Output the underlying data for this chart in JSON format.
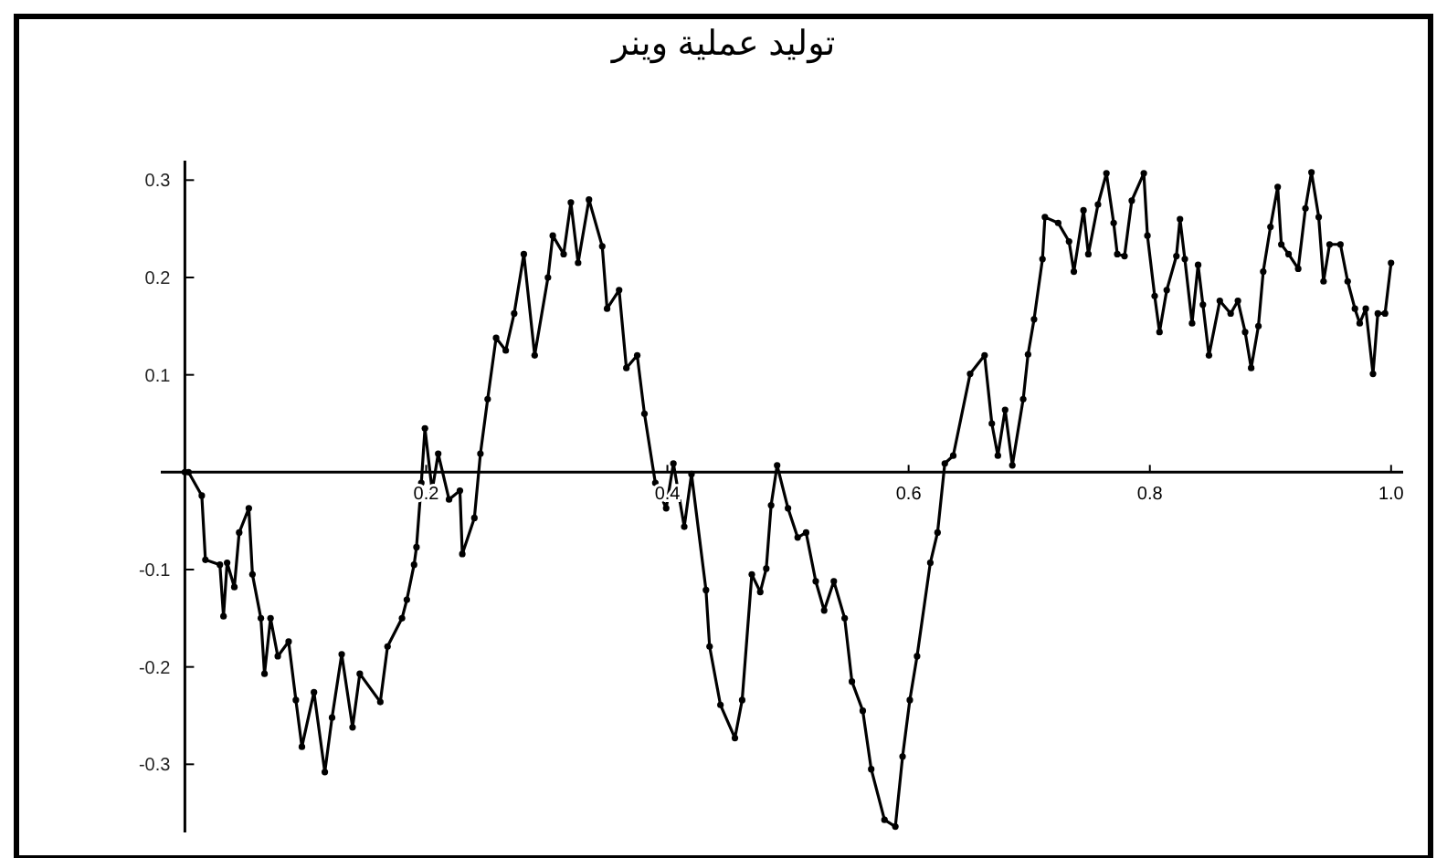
{
  "chart_data": {
    "type": "line",
    "title": "توليد عملية وينر",
    "marker": "circle",
    "line_style": "solid",
    "grid": false,
    "xlim": [
      -0.02,
      1.01
    ],
    "ylim": [
      -0.37,
      0.32
    ],
    "xticks": [
      0.2,
      0.4,
      0.6,
      0.8,
      {
        "value": 1,
        "label": "1.0"
      }
    ],
    "yticks": [
      -0.3,
      -0.2,
      -0.1,
      0.1,
      0.2,
      0.3
    ],
    "series": [
      {
        "color": "#000000",
        "x": [
          0,
          0.003,
          0.014,
          0.017,
          0.029,
          0.032,
          0.035,
          0.041,
          0.045,
          0.053,
          0.056,
          0.063,
          0.066,
          0.071,
          0.077,
          0.086,
          0.092,
          0.097,
          0.107,
          0.116,
          0.122,
          0.13,
          0.139,
          0.145,
          0.162,
          0.168,
          0.18,
          0.184,
          0.19,
          0.192,
          0.196,
          0.199,
          0.205,
          0.21,
          0.219,
          0.228,
          0.23,
          0.24,
          0.245,
          0.251,
          0.258,
          0.266,
          0.273,
          0.281,
          0.29,
          0.301,
          0.305,
          0.314,
          0.32,
          0.326,
          0.335,
          0.346,
          0.35,
          0.36,
          0.366,
          0.375,
          0.381,
          0.39,
          0.399,
          0.405,
          0.414,
          0.42,
          0.432,
          0.435,
          0.444,
          0.456,
          0.462,
          0.47,
          0.477,
          0.482,
          0.486,
          0.491,
          0.5,
          0.508,
          0.515,
          0.523,
          0.53,
          0.538,
          0.547,
          0.553,
          0.562,
          0.569,
          0.58,
          0.589,
          0.595,
          0.601,
          0.607,
          0.618,
          0.624,
          0.63,
          0.637,
          0.651,
          0.663,
          0.669,
          0.674,
          0.68,
          0.686,
          0.695,
          0.699,
          0.704,
          0.711,
          0.713,
          0.724,
          0.733,
          0.737,
          0.745,
          0.749,
          0.757,
          0.764,
          0.77,
          0.773,
          0.779,
          0.785,
          0.795,
          0.798,
          0.804,
          0.808,
          0.814,
          0.822,
          0.825,
          0.829,
          0.835,
          0.84,
          0.844,
          0.849,
          0.858,
          0.867,
          0.873,
          0.879,
          0.884,
          0.89,
          0.894,
          0.9,
          0.906,
          0.909,
          0.915,
          0.923,
          0.929,
          0.934,
          0.94,
          0.944,
          0.949,
          0.958,
          0.964,
          0.97,
          0.974,
          0.979,
          0.985,
          0.989,
          0.995,
          1.0
        ],
        "values": [
          0,
          0,
          -0.024,
          -0.09,
          -0.095,
          -0.148,
          -0.093,
          -0.118,
          -0.062,
          -0.037,
          -0.105,
          -0.15,
          -0.207,
          -0.15,
          -0.189,
          -0.174,
          -0.234,
          -0.282,
          -0.226,
          -0.308,
          -0.252,
          -0.187,
          -0.262,
          -0.207,
          -0.236,
          -0.179,
          -0.15,
          -0.131,
          -0.095,
          -0.077,
          -0.011,
          0.045,
          -0.019,
          0.019,
          -0.028,
          -0.019,
          -0.084,
          -0.047,
          0.019,
          0.075,
          0.138,
          0.125,
          0.163,
          0.224,
          0.12,
          0.2,
          0.243,
          0.224,
          0.277,
          0.215,
          0.28,
          0.232,
          0.168,
          0.187,
          0.107,
          0.12,
          0.06,
          -0.011,
          -0.037,
          0.009,
          -0.056,
          -0.002,
          -0.121,
          -0.179,
          -0.239,
          -0.273,
          -0.234,
          -0.105,
          -0.123,
          -0.099,
          -0.034,
          0.007,
          -0.037,
          -0.067,
          -0.062,
          -0.112,
          -0.142,
          -0.112,
          -0.15,
          -0.215,
          -0.245,
          -0.305,
          -0.357,
          -0.364,
          -0.292,
          -0.234,
          -0.189,
          -0.093,
          -0.062,
          0.009,
          0.017,
          0.101,
          0.12,
          0.05,
          0.017,
          0.064,
          0.007,
          0.075,
          0.121,
          0.157,
          0.219,
          0.262,
          0.256,
          0.237,
          0.206,
          0.269,
          0.224,
          0.275,
          0.307,
          0.256,
          0.224,
          0.222,
          0.279,
          0.307,
          0.243,
          0.181,
          0.144,
          0.187,
          0.222,
          0.26,
          0.219,
          0.153,
          0.213,
          0.172,
          0.12,
          0.176,
          0.163,
          0.176,
          0.144,
          0.107,
          0.15,
          0.206,
          0.252,
          0.293,
          0.234,
          0.224,
          0.209,
          0.271,
          0.308,
          0.262,
          0.196,
          0.234,
          0.234,
          0.196,
          0.168,
          0.153,
          0.168,
          0.101,
          0.163,
          0.163,
          0.215
        ]
      }
    ]
  }
}
